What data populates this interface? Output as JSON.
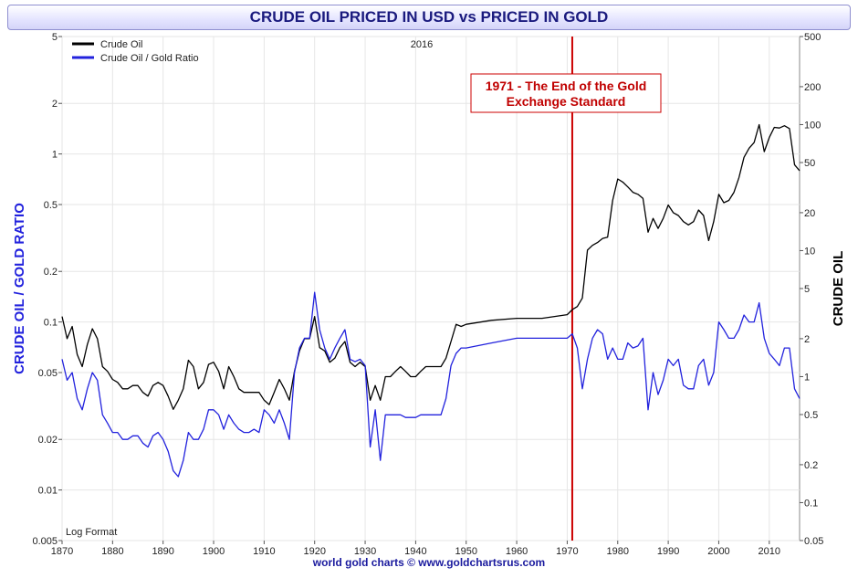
{
  "page": {
    "title": "CRUDE OIL PRICED IN USD vs PRICED IN GOLD",
    "footer": "world gold charts © www.goldchartsrus.com"
  },
  "chart_data": {
    "type": "line",
    "title": "CRUDE OIL PRICED IN USD vs PRICED IN GOLD",
    "ylabel_left": "CRUDE OIL / GOLD RATIO",
    "ylabel_right": "CRUDE OIL",
    "year_label": "2016",
    "format_label": "Log Format",
    "log_scale": true,
    "grid": true,
    "legend_position": "top-left",
    "x_range": [
      1870,
      2016
    ],
    "y_left_range": [
      0.005,
      5
    ],
    "y_right_range": [
      0.05,
      500
    ],
    "x_ticks": [
      "1870",
      "1880",
      "1890",
      "1900",
      "1910",
      "1920",
      "1930",
      "1940",
      "1950",
      "1960",
      "1970",
      "1980",
      "1990",
      "2000",
      "2010"
    ],
    "y_left_ticks": [
      "5",
      "2",
      "1",
      "0.5",
      "0.2",
      "0.1",
      "0.05",
      "0.02",
      "0.01",
      "0.005"
    ],
    "y_right_ticks": [
      "500",
      "200",
      "100",
      "50",
      "20",
      "10",
      "5",
      "2",
      "1",
      "0.5",
      "0.2",
      "0.1",
      "0.05"
    ],
    "annotation": {
      "lines": [
        "1971 - The End of the Gold",
        "Exchange Standard"
      ],
      "year": 1971,
      "color": "#cc0000"
    },
    "series": [
      {
        "name": "Crude Oil",
        "axis": "right",
        "color": "#000000",
        "x": [
          1870,
          1871,
          1872,
          1873,
          1874,
          1875,
          1876,
          1877,
          1878,
          1879,
          1880,
          1881,
          1882,
          1883,
          1884,
          1885,
          1886,
          1887,
          1888,
          1889,
          1890,
          1891,
          1892,
          1893,
          1894,
          1895,
          1896,
          1897,
          1898,
          1899,
          1900,
          1901,
          1902,
          1903,
          1904,
          1905,
          1906,
          1907,
          1908,
          1909,
          1910,
          1911,
          1912,
          1913,
          1914,
          1915,
          1916,
          1917,
          1918,
          1919,
          1920,
          1921,
          1922,
          1923,
          1924,
          1925,
          1926,
          1927,
          1928,
          1929,
          1930,
          1931,
          1932,
          1933,
          1934,
          1935,
          1936,
          1937,
          1938,
          1939,
          1940,
          1941,
          1942,
          1943,
          1944,
          1945,
          1946,
          1947,
          1948,
          1949,
          1950,
          1955,
          1960,
          1965,
          1970,
          1971,
          1972,
          1973,
          1974,
          1975,
          1976,
          1977,
          1978,
          1979,
          1980,
          1981,
          1982,
          1983,
          1984,
          1985,
          1986,
          1987,
          1988,
          1989,
          1990,
          1991,
          1992,
          1993,
          1994,
          1995,
          1996,
          1997,
          1998,
          1999,
          2000,
          2001,
          2002,
          2003,
          2004,
          2005,
          2006,
          2007,
          2008,
          2009,
          2010,
          2011,
          2012,
          2013,
          2014,
          2015,
          2016
        ],
        "values": [
          3.0,
          2.0,
          2.5,
          1.5,
          1.2,
          1.8,
          2.4,
          2.0,
          1.2,
          1.1,
          0.95,
          0.9,
          0.8,
          0.8,
          0.85,
          0.85,
          0.75,
          0.7,
          0.85,
          0.9,
          0.85,
          0.7,
          0.55,
          0.65,
          0.8,
          1.35,
          1.2,
          0.8,
          0.9,
          1.25,
          1.3,
          1.1,
          0.8,
          1.2,
          1.0,
          0.8,
          0.75,
          0.75,
          0.75,
          0.75,
          0.65,
          0.6,
          0.75,
          0.95,
          0.8,
          0.65,
          1.1,
          1.6,
          2.0,
          2.0,
          3.0,
          1.7,
          1.6,
          1.3,
          1.4,
          1.7,
          1.9,
          1.3,
          1.2,
          1.3,
          1.2,
          0.65,
          0.85,
          0.65,
          1.0,
          1.0,
          1.1,
          1.2,
          1.1,
          1.0,
          1.0,
          1.1,
          1.2,
          1.2,
          1.2,
          1.2,
          1.4,
          1.9,
          2.6,
          2.5,
          2.6,
          2.8,
          2.9,
          2.9,
          3.1,
          3.4,
          3.6,
          4.2,
          10.1,
          11.0,
          11.6,
          12.5,
          12.8,
          25.0,
          37.0,
          35.0,
          32.0,
          29.0,
          28.0,
          26.0,
          14.0,
          18.0,
          15.0,
          18.0,
          23.0,
          20.0,
          19.0,
          17.0,
          16.0,
          17.0,
          21.0,
          19.0,
          12.0,
          17.0,
          28.0,
          24.0,
          25.0,
          29.0,
          38.0,
          55.0,
          65.0,
          72.0,
          100.0,
          61.0,
          79.0,
          95.0,
          94.0,
          98.0,
          93.0,
          48.0,
          43.0
        ]
      },
      {
        "name": "Crude Oil / Gold Ratio",
        "axis": "left",
        "color": "#2222dd",
        "x": [
          1870,
          1871,
          1872,
          1873,
          1874,
          1875,
          1876,
          1877,
          1878,
          1879,
          1880,
          1881,
          1882,
          1883,
          1884,
          1885,
          1886,
          1887,
          1888,
          1889,
          1890,
          1891,
          1892,
          1893,
          1894,
          1895,
          1896,
          1897,
          1898,
          1899,
          1900,
          1901,
          1902,
          1903,
          1904,
          1905,
          1906,
          1907,
          1908,
          1909,
          1910,
          1911,
          1912,
          1913,
          1914,
          1915,
          1916,
          1917,
          1918,
          1919,
          1920,
          1921,
          1922,
          1923,
          1924,
          1925,
          1926,
          1927,
          1928,
          1929,
          1930,
          1931,
          1932,
          1933,
          1934,
          1935,
          1936,
          1937,
          1938,
          1939,
          1940,
          1941,
          1942,
          1943,
          1944,
          1945,
          1946,
          1947,
          1948,
          1949,
          1950,
          1955,
          1960,
          1965,
          1970,
          1971,
          1972,
          1973,
          1974,
          1975,
          1976,
          1977,
          1978,
          1979,
          1980,
          1981,
          1982,
          1983,
          1984,
          1985,
          1986,
          1987,
          1988,
          1989,
          1990,
          1991,
          1992,
          1993,
          1994,
          1995,
          1996,
          1997,
          1998,
          1999,
          2000,
          2001,
          2002,
          2003,
          2004,
          2005,
          2006,
          2007,
          2008,
          2009,
          2010,
          2011,
          2012,
          2013,
          2014,
          2015,
          2016
        ],
        "values": [
          0.06,
          0.045,
          0.05,
          0.035,
          0.03,
          0.04,
          0.05,
          0.045,
          0.028,
          0.025,
          0.022,
          0.022,
          0.02,
          0.02,
          0.021,
          0.021,
          0.019,
          0.018,
          0.021,
          0.022,
          0.02,
          0.017,
          0.013,
          0.012,
          0.015,
          0.022,
          0.02,
          0.02,
          0.023,
          0.03,
          0.03,
          0.028,
          0.023,
          0.028,
          0.025,
          0.023,
          0.022,
          0.022,
          0.023,
          0.022,
          0.03,
          0.028,
          0.025,
          0.03,
          0.025,
          0.02,
          0.05,
          0.07,
          0.08,
          0.08,
          0.15,
          0.09,
          0.07,
          0.06,
          0.07,
          0.08,
          0.09,
          0.06,
          0.058,
          0.06,
          0.055,
          0.018,
          0.03,
          0.015,
          0.028,
          0.028,
          0.028,
          0.028,
          0.027,
          0.027,
          0.027,
          0.028,
          0.028,
          0.028,
          0.028,
          0.028,
          0.035,
          0.055,
          0.065,
          0.07,
          0.07,
          0.075,
          0.08,
          0.08,
          0.08,
          0.085,
          0.07,
          0.04,
          0.06,
          0.08,
          0.09,
          0.085,
          0.06,
          0.07,
          0.06,
          0.06,
          0.075,
          0.07,
          0.072,
          0.08,
          0.03,
          0.05,
          0.037,
          0.045,
          0.06,
          0.055,
          0.06,
          0.042,
          0.04,
          0.04,
          0.055,
          0.06,
          0.042,
          0.05,
          0.1,
          0.09,
          0.08,
          0.08,
          0.09,
          0.11,
          0.1,
          0.1,
          0.13,
          0.08,
          0.065,
          0.06,
          0.055,
          0.07,
          0.07,
          0.04,
          0.035
        ]
      }
    ]
  }
}
